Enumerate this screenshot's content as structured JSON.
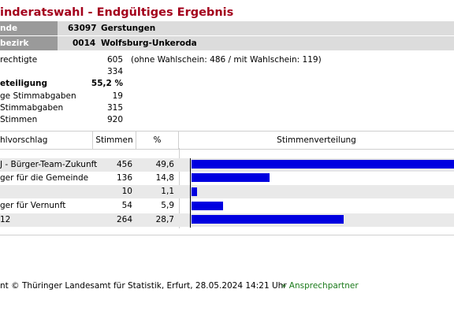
{
  "page": {
    "title": "inderatswahl - Endgültiges Ergebnis"
  },
  "header": {
    "gemeinde": {
      "label": "nde",
      "code": "63097",
      "name": "Gerstungen"
    },
    "bezirk": {
      "label": "bezirk",
      "code": "0014",
      "name": "Wolfsburg-Unkeroda"
    }
  },
  "stats": [
    {
      "label": "rechtigte",
      "value": "605",
      "note": "(ohne Wahlschein: 486 / mit Wahlschein: 119)"
    },
    {
      "label": "",
      "value": "334",
      "note": ""
    },
    {
      "label": "eteiligung",
      "value": "55,2 %",
      "note": "",
      "bold": true
    },
    {
      "label": "ge Stimmabgaben",
      "value": "19",
      "note": ""
    },
    {
      "label": "Stimmabgaben",
      "value": "315",
      "note": ""
    },
    {
      "label": "Stimmen",
      "value": "920",
      "note": ""
    }
  ],
  "table": {
    "columns": {
      "party": "hlvorschlag",
      "votes": "Stimmen",
      "percent": "%",
      "distribution": "Stimmenverteilung"
    },
    "rows": [
      {
        "party": "J - Bürger-Team-Zukunft",
        "votes": "456",
        "percent": "49,6",
        "share": 49.6
      },
      {
        "party": "ger für die Gemeinde",
        "votes": "136",
        "percent": "14,8",
        "share": 14.8
      },
      {
        "party": "",
        "votes": "10",
        "percent": "1,1",
        "share": 1.1
      },
      {
        "party": "ger für Vernunft",
        "votes": "54",
        "percent": "5,9",
        "share": 5.9
      },
      {
        "party": "12",
        "votes": "264",
        "percent": "28,7",
        "share": 28.7
      }
    ]
  },
  "footer": {
    "copyright": "nt © Thüringer Landesamt für Statistik, Erfurt, 28.05.2024 14:21 Uhr",
    "contact": "» Ansprechpartner"
  },
  "colors": {
    "title": "#a3001b",
    "bar": "#0000e0",
    "header_label_bg": "#9a9a9a",
    "header_bg": "#dcdcdc",
    "contact_link": "#1a7a1a"
  }
}
